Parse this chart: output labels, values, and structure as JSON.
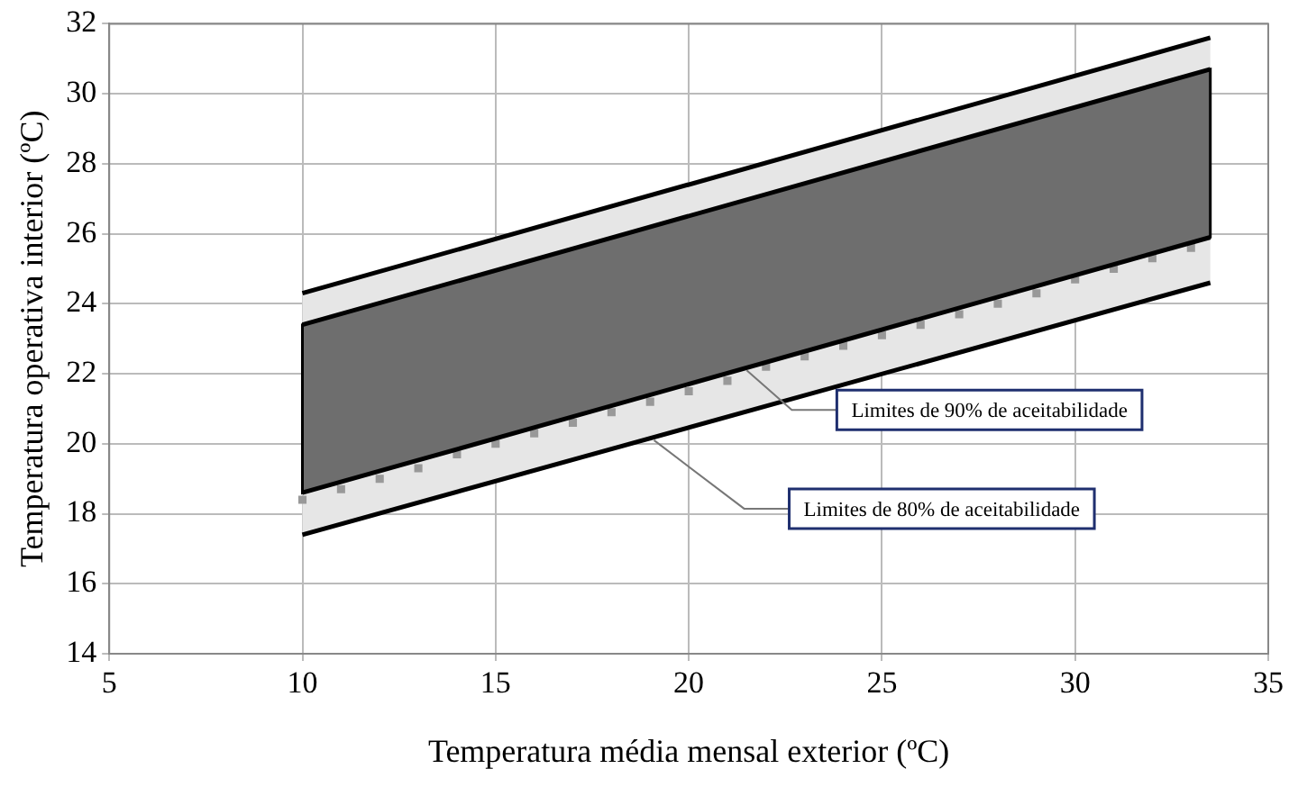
{
  "chart_data": {
    "type": "line",
    "xlabel": "Temperatura média mensal exterior (ºC)",
    "ylabel": "Temperatura operativa interior (ºC)",
    "xlim": [
      5,
      35
    ],
    "xticks": [
      5,
      10,
      15,
      20,
      25,
      30,
      35
    ],
    "ylim": [
      14,
      32
    ],
    "yticks": [
      14,
      16,
      18,
      20,
      22,
      24,
      26,
      28,
      30,
      32
    ],
    "grid": true,
    "legend": false,
    "marker": "none",
    "line_style": "solid",
    "series": [
      {
        "color": "#000000",
        "x": [
          10,
          33.5
        ],
        "values": [
          17.4,
          24.6
        ]
      },
      {
        "color": "#000000",
        "x": [
          10,
          33.5
        ],
        "values": [
          24.3,
          31.6
        ],
        "lower": [
          17.4,
          24.6
        ],
        "upper": [
          24.3,
          31.6
        ]
      },
      {
        "color": "#000000",
        "x": [
          10,
          33.5
        ],
        "values": [
          18.6,
          25.9
        ]
      },
      {
        "color": "#000000",
        "x": [
          10,
          33.5
        ],
        "values": [
          23.4,
          30.7
        ],
        "lower": [
          18.6,
          25.9
        ],
        "upper": [
          23.4,
          30.7
        ]
      },
      {
        "type": "scatter",
        "marker": "square",
        "color": "#999999",
        "x": [
          10,
          11,
          12,
          13,
          14,
          15,
          16,
          17,
          18,
          19,
          20,
          21,
          22,
          23,
          24,
          25,
          26,
          27,
          28,
          29,
          30,
          31,
          32,
          33
        ],
        "values": [
          18.4,
          18.7,
          19.0,
          19.3,
          19.7,
          20.0,
          20.3,
          20.6,
          20.9,
          21.2,
          21.5,
          21.8,
          22.2,
          22.5,
          22.8,
          23.1,
          23.4,
          23.7,
          24.0,
          24.3,
          24.7,
          25.0,
          25.3,
          25.6
        ]
      }
    ],
    "annotations": [
      {
        "text": "Limites de 90% de aceitabilidade",
        "x": 21.5,
        "y": 22.1
      },
      {
        "text": "Limites de 80% de aceitabilidade",
        "x": 19.1,
        "y": 20.1
      }
    ]
  }
}
